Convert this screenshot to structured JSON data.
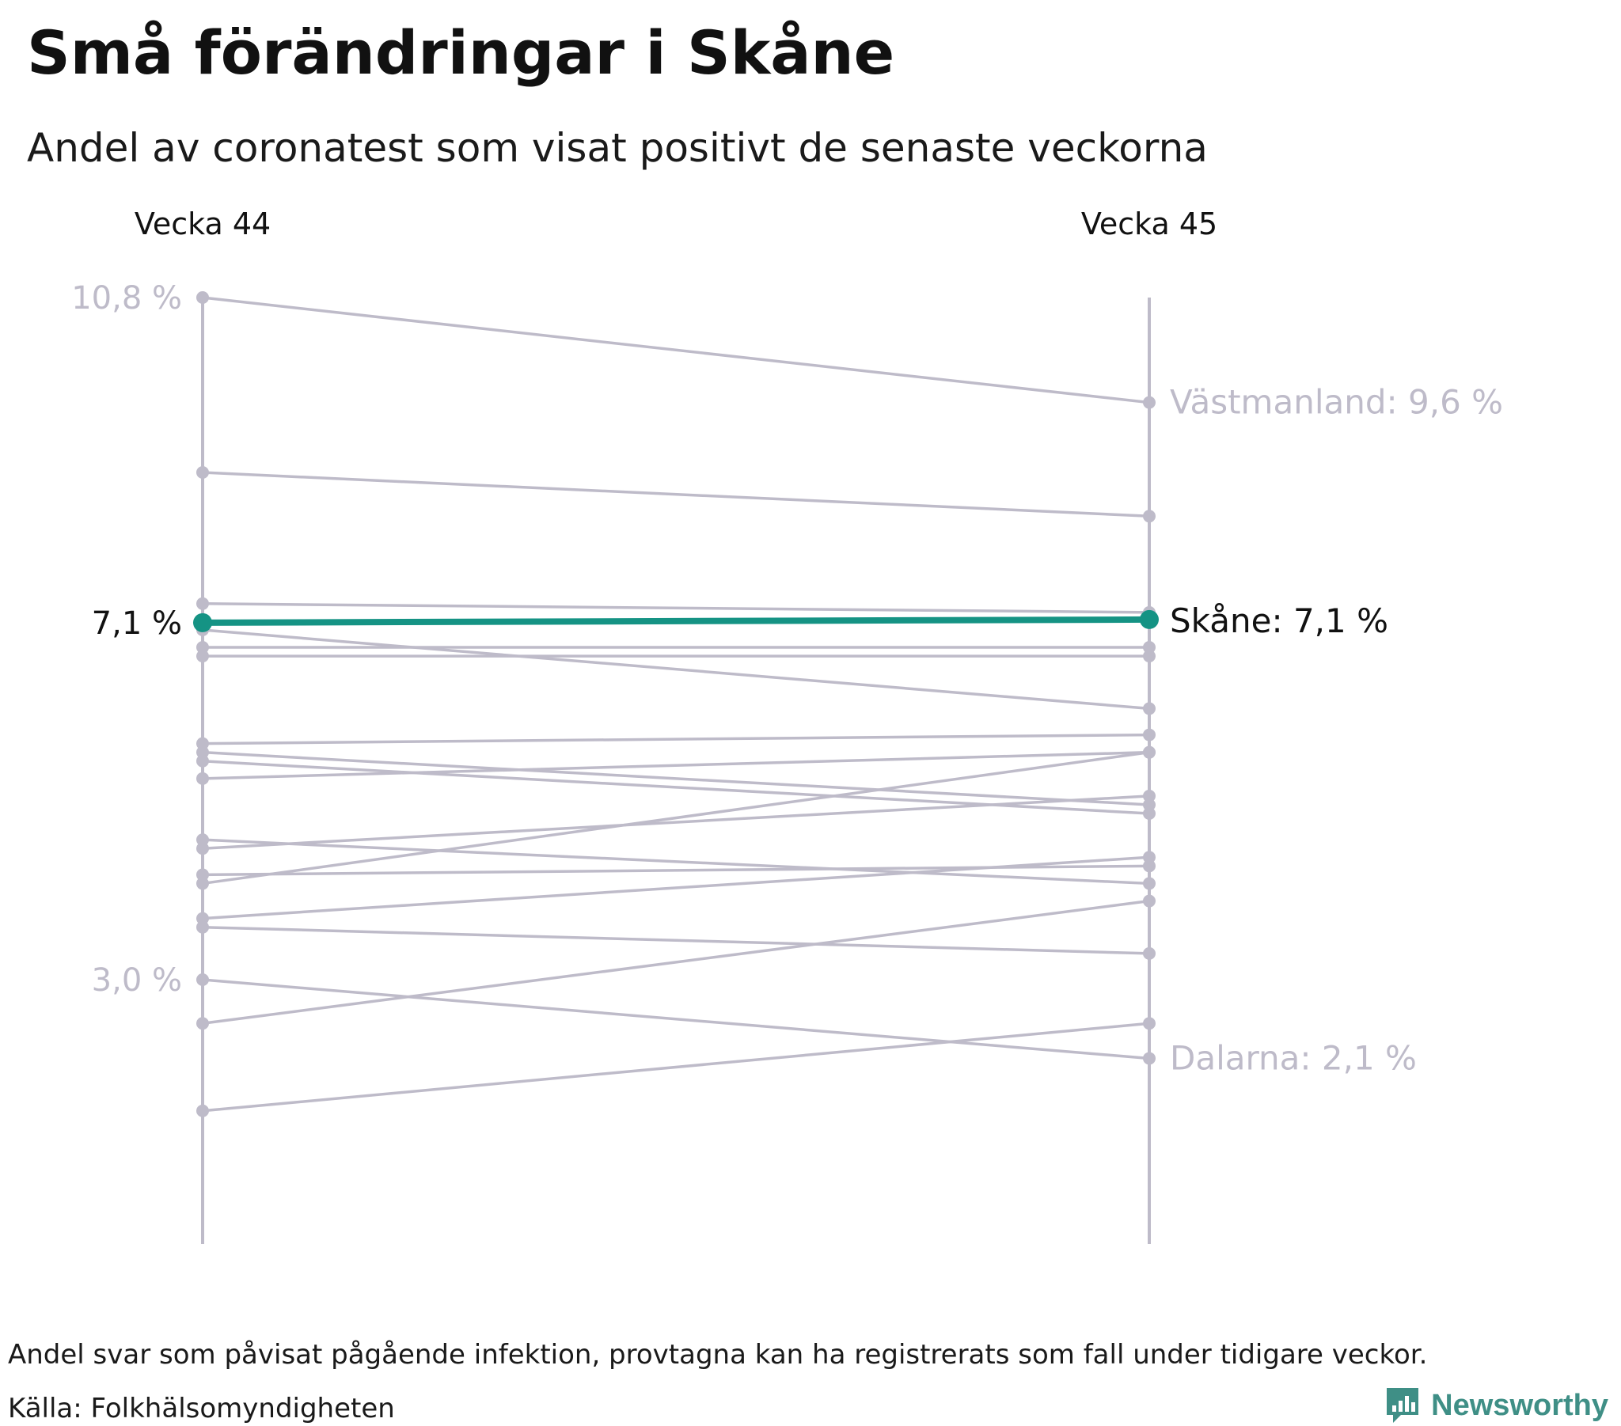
{
  "title": "Små förändringar i Skåne",
  "subtitle": "Andel av coronatest som visat positivt de senaste veckorna",
  "footer": {
    "note": "Andel svar som påvisat pågående infektion, provtagna kan ha registrerats som fall under tidigare veckor.",
    "source": "Källa: Folkhälsomyndigheten",
    "brand": "Newsworthy"
  },
  "colors": {
    "highlight": "#159384",
    "others": "#bebbc9",
    "muted_text": "#bebbc9",
    "text": "#111111",
    "brand": "#3f8f86"
  },
  "chart_data": {
    "type": "line",
    "chart_style": "slope",
    "categories": [
      "Vecka 44",
      "Vecka 45"
    ],
    "y_range": [
      0.4,
      10.8
    ],
    "y_axis_labels": [
      "10,8 %",
      "7,1 %",
      "3,0 %"
    ],
    "end_labels": [
      "Västmanland: 9,6 %",
      "Skåne: 7,1 %",
      "Dalarna: 2,1 %"
    ],
    "highlight": {
      "name": "Skåne",
      "values": [
        7.1,
        7.1
      ]
    },
    "series": [
      {
        "name": "Västmanland",
        "values": [
          10.8,
          9.6
        ]
      },
      {
        "values": [
          8.8,
          8.3
        ]
      },
      {
        "values": [
          7.3,
          7.2
        ]
      },
      {
        "values": [
          6.8,
          6.8
        ]
      },
      {
        "values": [
          6.7,
          6.7
        ]
      },
      {
        "values": [
          7.0,
          6.1
        ]
      },
      {
        "values": [
          5.7,
          5.8
        ]
      },
      {
        "values": [
          5.6,
          5.0
        ]
      },
      {
        "values": [
          5.5,
          4.9
        ]
      },
      {
        "values": [
          5.3,
          5.6
        ]
      },
      {
        "values": [
          4.6,
          4.1
        ]
      },
      {
        "values": [
          4.5,
          5.1
        ]
      },
      {
        "values": [
          4.2,
          4.3
        ]
      },
      {
        "values": [
          4.1,
          5.6
        ]
      },
      {
        "values": [
          3.7,
          4.4
        ]
      },
      {
        "values": [
          3.6,
          3.3
        ]
      },
      {
        "values": [
          3.0,
          2.1
        ]
      },
      {
        "values": [
          2.5,
          3.9
        ]
      },
      {
        "values": [
          1.5,
          2.5
        ]
      }
    ]
  }
}
